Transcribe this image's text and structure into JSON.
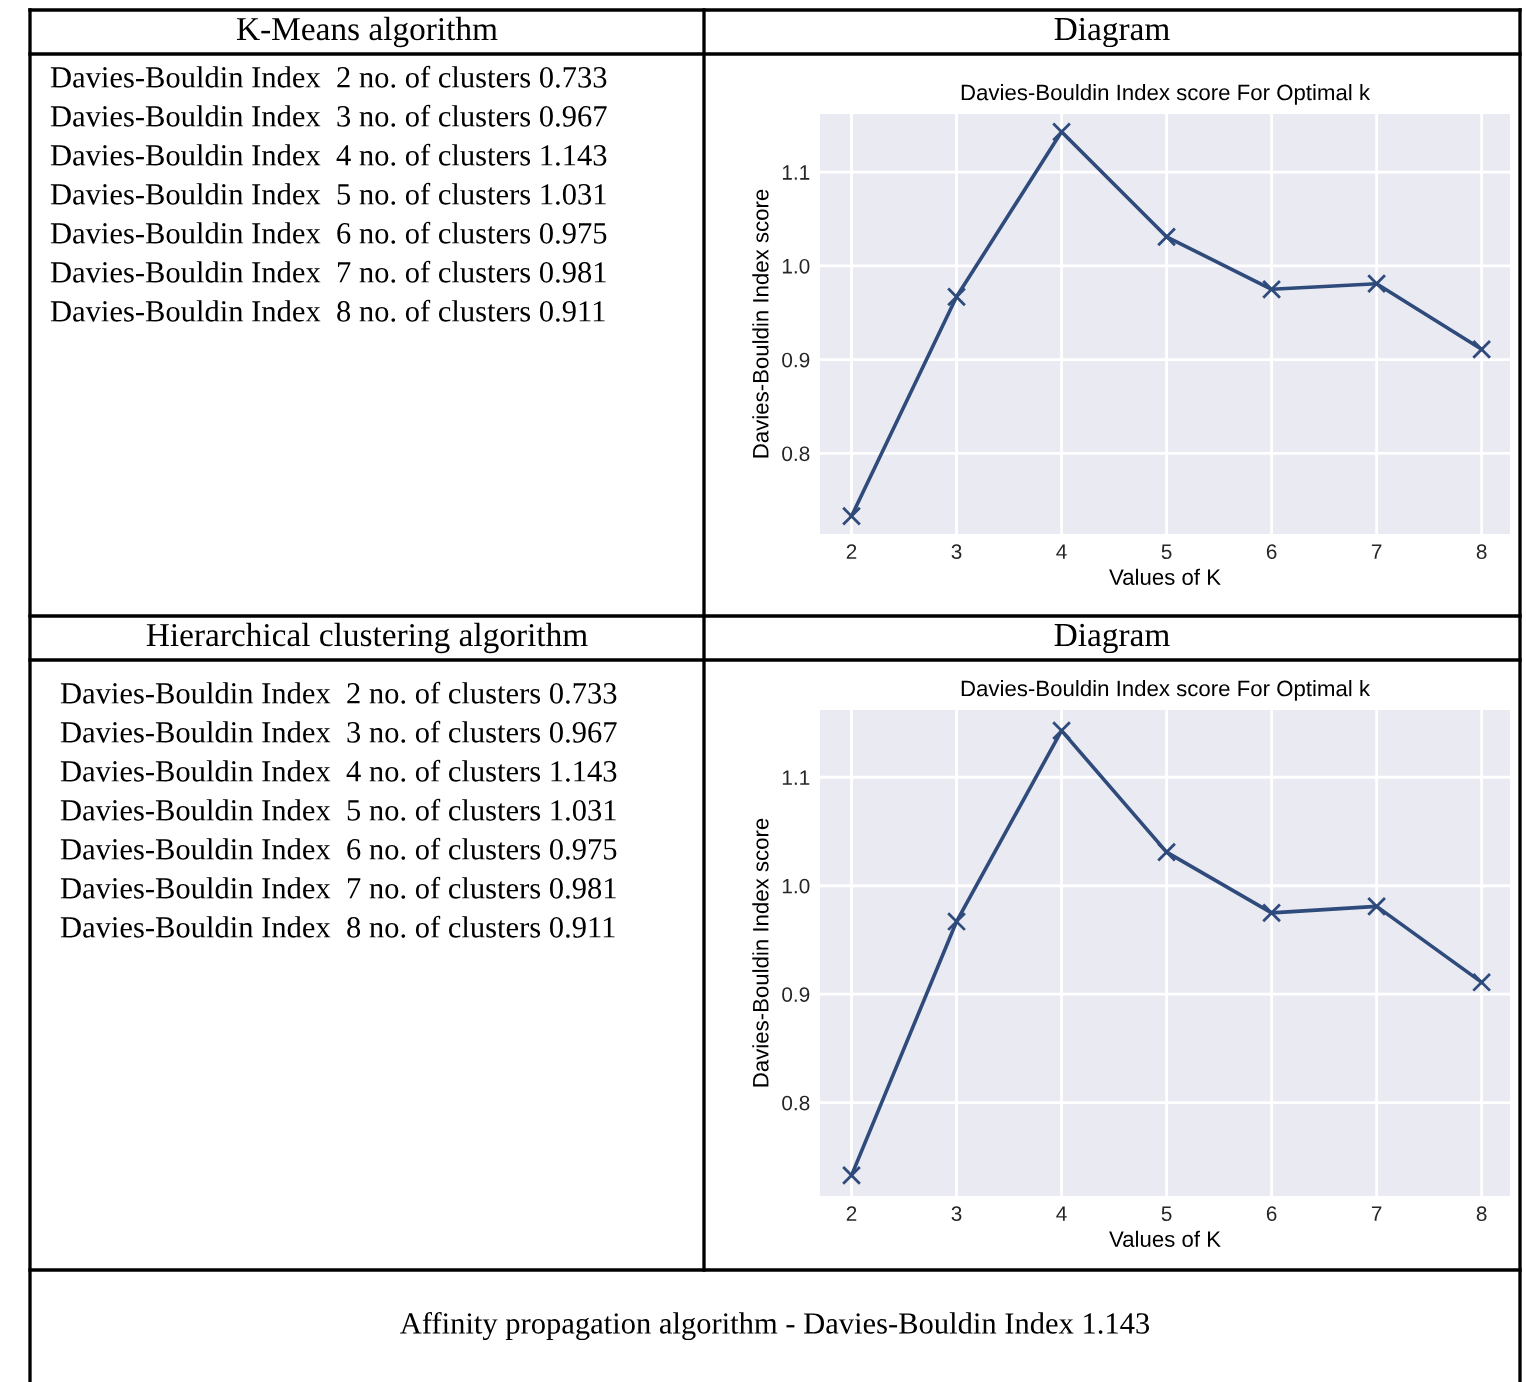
{
  "chart_data": [
    {
      "type": "other",
      "title": "K-Means algorithm",
      "annotations": [
        "Davies-Bouldin Index  2 no. of clusters 0.733",
        "Davies-Bouldin Index  3 no. of clusters 0.967",
        "Davies-Bouldin Index  4 no. of clusters 1.143",
        "Davies-Bouldin Index  5 no. of clusters 1.031",
        "Davies-Bouldin Index  6 no. of clusters 0.975",
        "Davies-Bouldin Index  7 no. of clusters 0.981",
        "Davies-Bouldin Index  8 no. of clusters 0.911"
      ]
    },
    {
      "type": "line",
      "title": "Diagram",
      "subtitle": "Davies-Bouldin Index score For Optimal k",
      "xlabel": "Values of K",
      "ylabel": "Davies-Bouldin Index score",
      "x": [
        2,
        3,
        4,
        5,
        6,
        7,
        8
      ],
      "series": [
        {
          "color": "#2f4b7c",
          "values": [
            0.733,
            0.967,
            1.143,
            1.031,
            0.975,
            0.981,
            0.911
          ]
        }
      ],
      "xlim": [
        1.7,
        8.27
      ],
      "ylim": [
        0.714,
        1.162
      ],
      "xticks": [
        2,
        3,
        4,
        5,
        6,
        7,
        8
      ],
      "yticks": [
        0.8,
        0.9,
        {
          "value": 1.0,
          "label": "1.0"
        },
        1.1
      ],
      "grid": true,
      "marker": "cross",
      "line_style": "solid"
    },
    {
      "type": "other",
      "title": "Hierarchical clustering algorithm",
      "annotations": [
        "Davies-Bouldin Index  2 no. of clusters 0.733",
        "Davies-Bouldin Index  3 no. of clusters 0.967",
        "Davies-Bouldin Index  4 no. of clusters 1.143",
        "Davies-Bouldin Index  5 no. of clusters 1.031",
        "Davies-Bouldin Index  6 no. of clusters 0.975",
        "Davies-Bouldin Index  7 no. of clusters 0.981",
        "Davies-Bouldin Index  8 no. of clusters 0.911"
      ]
    },
    {
      "type": "line",
      "title": "Diagram",
      "subtitle": "Davies-Bouldin Index score For Optimal k",
      "xlabel": "Values of K",
      "ylabel": "Davies-Bouldin Index score",
      "x": [
        2,
        3,
        4,
        5,
        6,
        7,
        8
      ],
      "series": [
        {
          "color": "#2f4b7c",
          "values": [
            0.733,
            0.967,
            1.143,
            1.031,
            0.975,
            0.981,
            0.911
          ]
        }
      ],
      "xlim": [
        1.7,
        8.27
      ],
      "ylim": [
        0.714,
        1.162
      ],
      "xticks": [
        2,
        3,
        4,
        5,
        6,
        7,
        8
      ],
      "yticks": [
        0.8,
        0.9,
        {
          "value": 1.0,
          "label": "1.0"
        },
        1.1
      ],
      "grid": true,
      "marker": "cross",
      "line_style": "solid"
    },
    {
      "type": "other",
      "annotations": [
        "Affinity propagation algorithm - Davies-Bouldin Index 1.143"
      ]
    }
  ]
}
